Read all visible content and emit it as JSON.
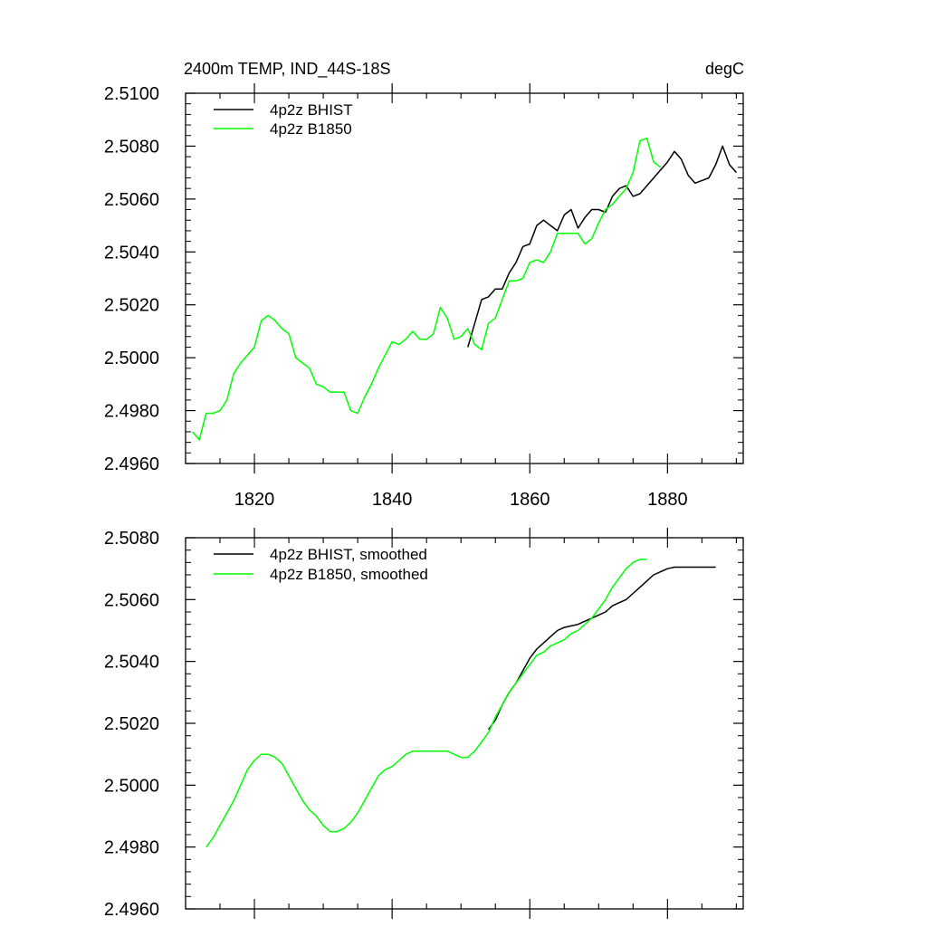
{
  "chart_data": [
    {
      "type": "line",
      "title_left": "2400m TEMP, IND_44S-18S",
      "title_right": "degC",
      "xlim": [
        1810,
        1891
      ],
      "ylim": [
        2.496,
        2.51
      ],
      "yticks": [
        2.496,
        2.498,
        2.5,
        2.502,
        2.504,
        2.506,
        2.508,
        2.51
      ],
      "ytick_labels": [
        "2.4960",
        "2.4980",
        "2.5000",
        "2.5020",
        "2.5040",
        "2.5060",
        "2.5080",
        "2.5100"
      ],
      "xticks": [
        1820,
        1840,
        1860,
        1880
      ],
      "xtick_labels": [
        "1820",
        "1840",
        "1860",
        "1880"
      ],
      "series": [
        {
          "name": "4p2z BHIST",
          "color": "#000000",
          "x": [
            1851,
            1852,
            1853,
            1854,
            1855,
            1856,
            1857,
            1858,
            1859,
            1860,
            1861,
            1862,
            1863,
            1864,
            1865,
            1866,
            1867,
            1868,
            1869,
            1870,
            1871,
            1872,
            1873,
            1874,
            1875,
            1876,
            1877,
            1878,
            1879,
            1880,
            1881,
            1882,
            1883,
            1884,
            1885,
            1886,
            1887,
            1888,
            1889,
            1890
          ],
          "values": [
            2.5004,
            2.5013,
            2.5022,
            2.5023,
            2.5026,
            2.5026,
            2.5032,
            2.5036,
            2.5042,
            2.5043,
            2.505,
            2.5052,
            2.505,
            2.5048,
            2.5054,
            2.5056,
            2.5049,
            2.5053,
            2.5056,
            2.5056,
            2.5055,
            2.5061,
            2.5064,
            2.5065,
            2.5061,
            2.5062,
            2.5065,
            2.5068,
            2.5071,
            2.5074,
            2.5078,
            2.5075,
            2.5069,
            2.5066,
            2.5067,
            2.5068,
            2.5073,
            2.508,
            2.5073,
            2.507
          ]
        },
        {
          "name": "4p2z B1850",
          "color": "#00ff00",
          "x": [
            1811,
            1812,
            1813,
            1814,
            1815,
            1816,
            1817,
            1818,
            1819,
            1820,
            1821,
            1822,
            1823,
            1824,
            1825,
            1826,
            1827,
            1828,
            1829,
            1830,
            1831,
            1832,
            1833,
            1834,
            1835,
            1836,
            1837,
            1838,
            1839,
            1840,
            1841,
            1842,
            1843,
            1844,
            1845,
            1846,
            1847,
            1848,
            1849,
            1850,
            1851,
            1852,
            1853,
            1854,
            1855,
            1856,
            1857,
            1858,
            1859,
            1860,
            1861,
            1862,
            1863,
            1864,
            1865,
            1866,
            1867,
            1868,
            1869,
            1870,
            1871,
            1872,
            1873,
            1874,
            1875,
            1876,
            1877,
            1878,
            1879
          ],
          "values": [
            2.4972,
            2.4969,
            2.4979,
            2.4979,
            2.498,
            2.4984,
            2.4994,
            2.4998,
            2.5001,
            2.5004,
            2.5014,
            2.5016,
            2.5014,
            2.5011,
            2.5009,
            2.5,
            2.4998,
            2.4996,
            2.499,
            2.4989,
            2.4987,
            2.4987,
            2.4987,
            2.498,
            2.4979,
            2.4985,
            2.499,
            2.4996,
            2.5001,
            2.5006,
            2.5005,
            2.5007,
            2.501,
            2.5007,
            2.5007,
            2.5009,
            2.5019,
            2.5015,
            2.5007,
            2.5008,
            2.5011,
            2.5005,
            2.5003,
            2.5013,
            2.5015,
            2.5022,
            2.5029,
            2.5029,
            2.503,
            2.5036,
            2.5037,
            2.5036,
            2.504,
            2.5047,
            2.5047,
            2.5047,
            2.5047,
            2.5043,
            2.5045,
            2.5051,
            2.5056,
            2.5058,
            2.5061,
            2.5064,
            2.507,
            2.5082,
            2.5083,
            2.5074,
            2.5072
          ]
        }
      ]
    },
    {
      "type": "line",
      "xlim": [
        1810,
        1891
      ],
      "ylim": [
        2.496,
        2.508
      ],
      "yticks": [
        2.496,
        2.498,
        2.5,
        2.502,
        2.504,
        2.506,
        2.508
      ],
      "ytick_labels": [
        "2.4960",
        "2.4980",
        "2.5000",
        "2.5020",
        "2.5040",
        "2.5060",
        "2.5080"
      ],
      "xticks": [
        1820,
        1840,
        1860,
        1880
      ],
      "series": [
        {
          "name": "4p2z BHIST, smoothed",
          "color": "#000000",
          "x": [
            1854,
            1855,
            1856,
            1857,
            1858,
            1859,
            1860,
            1861,
            1862,
            1863,
            1864,
            1865,
            1866,
            1867,
            1868,
            1869,
            1870,
            1871,
            1872,
            1873,
            1874,
            1875,
            1876,
            1877,
            1878,
            1879,
            1880,
            1881,
            1882,
            1883,
            1884,
            1885,
            1886,
            1887
          ],
          "values": [
            2.5018,
            2.5021,
            2.5026,
            2.503,
            2.5033,
            2.5037,
            2.5041,
            2.5044,
            2.5046,
            2.5048,
            2.505,
            2.5051,
            2.50515,
            2.5052,
            2.5053,
            2.5054,
            2.5055,
            2.5056,
            2.5058,
            2.5059,
            2.506,
            2.5062,
            2.5064,
            2.5066,
            2.5068,
            2.5069,
            2.507,
            2.50705,
            2.50705,
            2.50705,
            2.50705,
            2.50705,
            2.50705,
            2.50705
          ]
        },
        {
          "name": "4p2z B1850, smoothed",
          "color": "#00ff00",
          "x": [
            1813,
            1814,
            1815,
            1816,
            1817,
            1818,
            1819,
            1820,
            1821,
            1822,
            1823,
            1824,
            1825,
            1826,
            1827,
            1828,
            1829,
            1830,
            1831,
            1832,
            1833,
            1834,
            1835,
            1836,
            1837,
            1838,
            1839,
            1840,
            1841,
            1842,
            1843,
            1844,
            1845,
            1846,
            1847,
            1848,
            1849,
            1850,
            1851,
            1852,
            1853,
            1854,
            1855,
            1856,
            1857,
            1858,
            1859,
            1860,
            1861,
            1862,
            1863,
            1864,
            1865,
            1866,
            1867,
            1868,
            1869,
            1870,
            1871,
            1872,
            1873,
            1874,
            1875,
            1876,
            1877
          ],
          "values": [
            2.498,
            2.4983,
            2.4987,
            2.4991,
            2.4995,
            2.5,
            2.5005,
            2.5008,
            2.501,
            2.501,
            2.5009,
            2.5007,
            2.5003,
            2.4999,
            2.4995,
            2.4992,
            2.499,
            2.4987,
            2.4985,
            2.4985,
            2.4986,
            2.4988,
            2.4991,
            2.4995,
            2.4999,
            2.5003,
            2.5005,
            2.5006,
            2.5008,
            2.501,
            2.5011,
            2.5011,
            2.5011,
            2.5011,
            2.5011,
            2.5011,
            2.501,
            2.5009,
            2.5009,
            2.5011,
            2.5014,
            2.5017,
            2.5022,
            2.5026,
            2.503,
            2.5033,
            2.5036,
            2.5039,
            2.5042,
            2.5043,
            2.5045,
            2.5046,
            2.5047,
            2.5049,
            2.505,
            2.5052,
            2.5054,
            2.5057,
            2.506,
            2.5064,
            2.5067,
            2.507,
            2.5072,
            2.5073,
            2.5073
          ]
        }
      ]
    }
  ]
}
